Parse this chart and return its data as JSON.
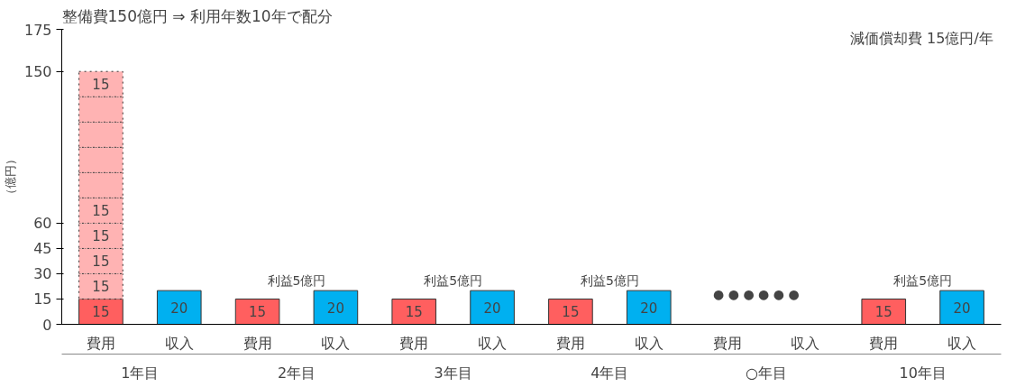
{
  "chart_data": {
    "type": "bar",
    "title": "整備費150億円 ⇒ 利用年数10年で配分",
    "ylabel": "（億円）",
    "categories": [
      "費用",
      "収入",
      "費用",
      "収入",
      "費用",
      "収入",
      "費用",
      "収入",
      "費用",
      "収入",
      "費用",
      "収入"
    ],
    "ylim": [
      0,
      175
    ],
    "yticks": [
      0,
      15,
      30,
      45,
      60,
      150,
      175
    ],
    "grid": false,
    "stacked": true,
    "series": [
      {
        "color": "#ff5f5f",
        "values": [
          15,
          null,
          15,
          null,
          15,
          null,
          15,
          null,
          null,
          null,
          15,
          null
        ],
        "value_labels": [
          "15",
          null,
          "15",
          null,
          "15",
          null,
          "15",
          null,
          null,
          null,
          "15",
          null
        ]
      },
      {
        "color": "#ffb3b3",
        "values": [
          15,
          null,
          null,
          null,
          null,
          null,
          null,
          null,
          null,
          null,
          null,
          null
        ],
        "value_labels": [
          "15",
          null,
          null,
          null,
          null,
          null,
          null,
          null,
          null,
          null,
          null,
          null
        ]
      },
      {
        "color": "#ffb3b3",
        "values": [
          15,
          null,
          null,
          null,
          null,
          null,
          null,
          null,
          null,
          null,
          null,
          null
        ],
        "value_labels": [
          "15",
          null,
          null,
          null,
          null,
          null,
          null,
          null,
          null,
          null,
          null,
          null
        ]
      },
      {
        "color": "#ffb3b3",
        "values": [
          15,
          null,
          null,
          null,
          null,
          null,
          null,
          null,
          null,
          null,
          null,
          null
        ],
        "value_labels": [
          "15",
          null,
          null,
          null,
          null,
          null,
          null,
          null,
          null,
          null,
          null,
          null
        ]
      },
      {
        "color": "#ffb3b3",
        "values": [
          15,
          null,
          null,
          null,
          null,
          null,
          null,
          null,
          null,
          null,
          null,
          null
        ],
        "value_labels": [
          "15",
          null,
          null,
          null,
          null,
          null,
          null,
          null,
          null,
          null,
          null,
          null
        ]
      },
      {
        "color": "#ffb3b3",
        "values": [
          15,
          null,
          null,
          null,
          null,
          null,
          null,
          null,
          null,
          null,
          null,
          null
        ]
      },
      {
        "color": "#ffb3b3",
        "values": [
          15,
          null,
          null,
          null,
          null,
          null,
          null,
          null,
          null,
          null,
          null,
          null
        ]
      },
      {
        "color": "#ffb3b3",
        "values": [
          15,
          null,
          null,
          null,
          null,
          null,
          null,
          null,
          null,
          null,
          null,
          null
        ]
      },
      {
        "color": "#ffb3b3",
        "values": [
          15,
          null,
          null,
          null,
          null,
          null,
          null,
          null,
          null,
          null,
          null,
          null
        ]
      },
      {
        "color": "#ffb3b3",
        "values": [
          15,
          null,
          null,
          null,
          null,
          null,
          null,
          null,
          null,
          null,
          null,
          null
        ],
        "value_labels": [
          "15",
          null,
          null,
          null,
          null,
          null,
          null,
          null,
          null,
          null,
          null,
          null
        ]
      },
      {
        "color": "#00b0f0",
        "values": [
          null,
          20,
          null,
          20,
          null,
          20,
          null,
          20,
          null,
          null,
          null,
          20
        ],
        "value_labels": [
          null,
          "20",
          null,
          "20",
          null,
          "20",
          null,
          "20",
          null,
          null,
          null,
          "20"
        ]
      }
    ],
    "annotations": [
      "1年目",
      "2年目",
      "3年目",
      "4年目",
      "○年目",
      "10年目",
      "減価償却費 15億円/年",
      "利益5億円",
      "利益5億円",
      "利益5億円",
      "利益5億円",
      "●  ●  ●  ●  ●  ●"
    ]
  }
}
